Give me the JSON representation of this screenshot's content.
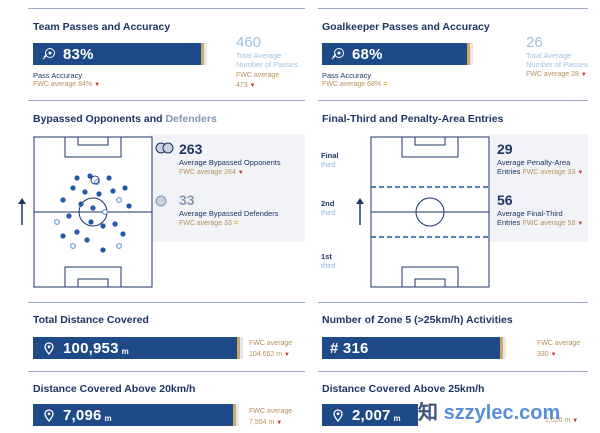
{
  "team_passes": {
    "title": "Team Passes and Accuracy",
    "value": "83%",
    "label": "Pass Accuracy",
    "fwc": "FWC average 84%",
    "total": "460",
    "total_label_1": "Total Average",
    "total_label_2": "Number of Passes",
    "total_fwc_1": "FWC average",
    "total_fwc_2": "473"
  },
  "gk_passes": {
    "title": "Goalkeeper Passes and Accuracy",
    "value": "68%",
    "label": "Pass Accuracy",
    "fwc": "FWC average 68%",
    "total": "26",
    "total_label_1": "Total Average",
    "total_label_2": "Number of Passes",
    "total_fwc": "FWC average 28"
  },
  "bypassed": {
    "title_main": "Bypassed Opponents and ",
    "title_light": "Defenders",
    "opponents_value": "263",
    "opponents_label": "Average Bypassed Opponents",
    "opponents_fwc": "FWC average 264",
    "defenders_value": "33",
    "defenders_label": "Average Bypassed Defenders",
    "defenders_fwc": "FWC average 33"
  },
  "final_third": {
    "title": "Final-Third and Penalty-Area Entries",
    "zone_final": "Final",
    "zone_final_t": "third",
    "zone_2nd": "2nd",
    "zone_2nd_t": "third",
    "zone_1st": "1st",
    "zone_1st_t": "third",
    "penalty_value": "29",
    "penalty_label_1": "Average Penalty-Area",
    "penalty_label_2": "Entries",
    "penalty_fwc": "FWC average 33",
    "final_value": "56",
    "final_label_1": "Average Final-Third",
    "final_label_2": "Entries",
    "final_fwc": "FWC average 58"
  },
  "distance": {
    "title": "Total Distance Covered",
    "value": "100,953",
    "unit": "m",
    "fwc_1": "FWC average",
    "fwc_2": "104,662 m"
  },
  "zone5": {
    "title": "Number of Zone 5 (>25km/h) Activities",
    "value": "# 316",
    "fwc_1": "FWC average",
    "fwc_2": "330"
  },
  "dist20": {
    "title": "Distance Covered Above 20km/h",
    "value": "7,096",
    "unit": "m",
    "fwc_1": "FWC average",
    "fwc_2": "7,554 m"
  },
  "dist25": {
    "title": "Distance Covered Above 25km/h",
    "value": "2,007",
    "unit": "m",
    "fwc_2": "2,026 m"
  },
  "watermark": "szzylec.com",
  "watermark_prefix": "知"
}
